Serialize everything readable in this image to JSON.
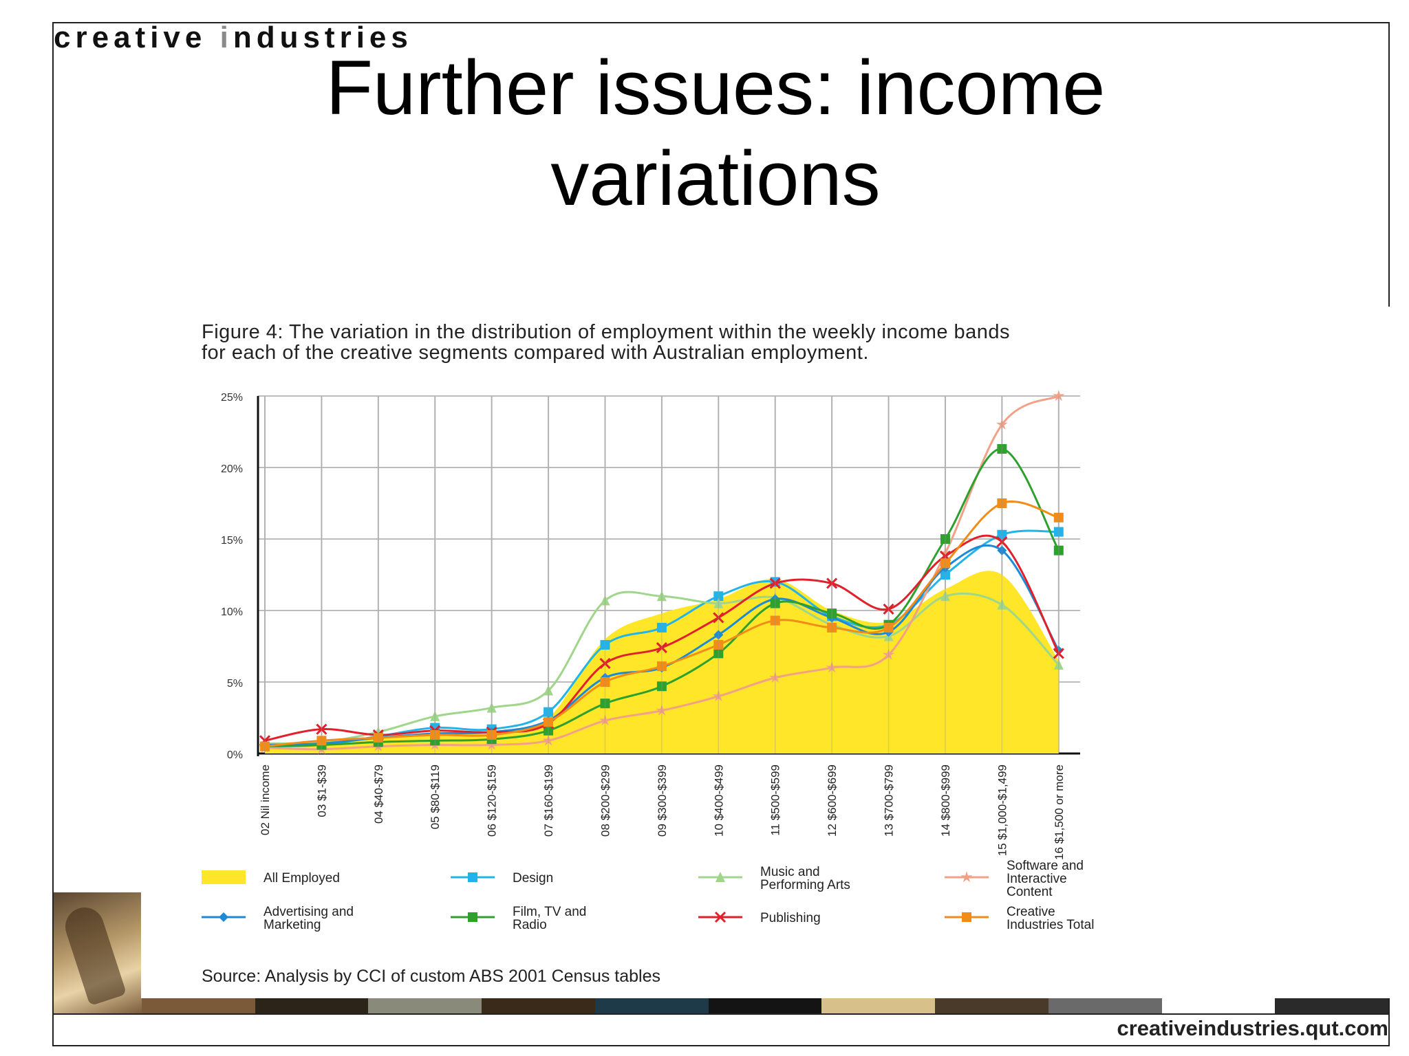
{
  "header": {
    "brand_part1": "creative ",
    "brand_part2": "i",
    "brand_part3": "ndustries",
    "title_line1": "Further issues: income",
    "title_line2": "variations"
  },
  "figure": {
    "caption_line1": "Figure 4: The variation in the distribution of employment within the weekly income bands",
    "caption_line2": "for each of the creative segments compared with Australian employment.",
    "source": "Source: Analysis by CCI of custom ABS 2001 Census tables"
  },
  "footer": {
    "url": "creativeindustries.qut.com"
  },
  "chart_data": {
    "type": "line",
    "title": "",
    "xlabel": "",
    "ylabel": "",
    "ylim": [
      0,
      25
    ],
    "yticks": [
      0,
      5,
      10,
      15,
      20,
      25
    ],
    "ytick_labels": [
      "0%",
      "5%",
      "10%",
      "15%",
      "20%",
      "25%"
    ],
    "grid": true,
    "legend_position": "bottom",
    "categories": [
      "02 Nil income",
      "03 $1-$39",
      "04 $40-$79",
      "05 $80-$119",
      "06 $120-$159",
      "07 $160-$199",
      "08 $200-$299",
      "09 $300-$399",
      "10 $400-$499",
      "11 $500-$599",
      "12 $600-$699",
      "13 $700-$799",
      "14 $800-$999",
      "15 $1,000-$1,499",
      "16 $1,500 or more"
    ],
    "series": [
      {
        "name": "All Employed",
        "style": "area",
        "color": "#ffe629",
        "marker": "none",
        "values": [
          0.5,
          0.9,
          1.1,
          1.3,
          1.5,
          2.5,
          8.0,
          9.8,
          10.8,
          12.2,
          10.0,
          9.2,
          11.5,
          12.5,
          6.5
        ]
      },
      {
        "name": "Design",
        "color": "#22b4e8",
        "marker": "square",
        "values": [
          0.5,
          0.6,
          1.2,
          1.8,
          1.7,
          2.9,
          7.6,
          8.8,
          11.0,
          12.0,
          9.6,
          9.0,
          12.5,
          15.3,
          15.5
        ]
      },
      {
        "name": "Music and Performing Arts",
        "color": "#9fd68a",
        "marker": "triangle",
        "values": [
          0.7,
          0.8,
          1.5,
          2.6,
          3.2,
          4.4,
          10.7,
          11.0,
          10.5,
          10.9,
          9.0,
          8.2,
          11.0,
          10.4,
          6.2
        ]
      },
      {
        "name": "Software and Interactive Content",
        "color": "#f3a088",
        "marker": "star",
        "values": [
          0.4,
          0.3,
          0.5,
          0.6,
          0.6,
          0.9,
          2.3,
          3.0,
          4.0,
          5.3,
          6.0,
          6.9,
          14.0,
          23.0,
          27.0
        ]
      },
      {
        "name": "Advertising and Marketing",
        "color": "#1e8ad6",
        "marker": "diamond",
        "values": [
          0.6,
          0.7,
          1.1,
          1.4,
          1.5,
          2.3,
          5.3,
          6.0,
          8.3,
          10.8,
          9.5,
          8.5,
          13.0,
          14.2,
          7.2
        ]
      },
      {
        "name": "Film, TV and Radio",
        "color": "#2ea02e",
        "marker": "square",
        "values": [
          0.5,
          0.6,
          0.8,
          0.9,
          1.0,
          1.6,
          3.5,
          4.7,
          7.0,
          10.5,
          9.8,
          9.0,
          15.0,
          21.3,
          14.2
        ]
      },
      {
        "name": "Publishing",
        "color": "#e0202a",
        "marker": "x",
        "values": [
          0.9,
          1.7,
          1.3,
          1.6,
          1.5,
          2.1,
          6.3,
          7.4,
          9.5,
          11.9,
          11.9,
          10.1,
          13.8,
          14.8,
          7.0
        ]
      },
      {
        "name": "Creative Industries Total",
        "color": "#f28c18",
        "marker": "square",
        "values": [
          0.5,
          0.9,
          1.1,
          1.3,
          1.3,
          2.2,
          5.0,
          6.1,
          7.6,
          9.3,
          8.8,
          8.8,
          13.3,
          17.5,
          16.5
        ]
      }
    ]
  }
}
